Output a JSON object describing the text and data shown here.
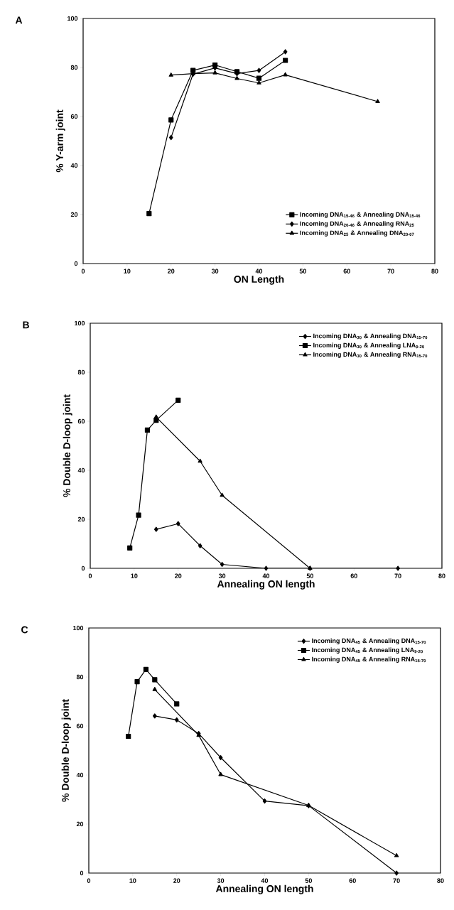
{
  "chart_data": [
    {
      "type": "line",
      "title": "A",
      "xlabel": "ON Length",
      "ylabel": "% Y-arm joint",
      "xlim": [
        0,
        80
      ],
      "ylim": [
        0,
        100
      ],
      "xticks": [
        0,
        10,
        20,
        30,
        40,
        50,
        60,
        70,
        80
      ],
      "yticks": [
        0,
        20,
        40,
        60,
        80,
        100
      ],
      "grid": false,
      "legend": "bottom right",
      "line_style": "solid",
      "series": [
        {
          "name": "Incoming DNA$_{15-46}$ & Annealing DNA$_{15-46}$",
          "color": "#000000",
          "marker": "square",
          "x": [
            15,
            20,
            25,
            30,
            35,
            40,
            46
          ],
          "values": [
            20.4,
            58.6,
            78.8,
            81,
            78.3,
            75.6,
            82.9
          ]
        },
        {
          "name": "Incoming DNA$_{20-46}$ & Annealing RNA$_{25}$",
          "color": "#000000",
          "marker": "diamond",
          "x": [
            20,
            25,
            30,
            35,
            40,
            46
          ],
          "values": [
            51.4,
            77.3,
            79.8,
            77.5,
            78.8,
            86.4
          ]
        },
        {
          "name": "Incoming DNA$_{25}$ & Annealing DNA$_{20-67}$",
          "color": "#000000",
          "marker": "triangle",
          "x": [
            20,
            25,
            30,
            35,
            40,
            46,
            67
          ],
          "values": [
            76.9,
            77.5,
            77.8,
            75.5,
            73.7,
            77,
            66.1
          ]
        }
      ]
    },
    {
      "type": "line",
      "title": "B",
      "xlabel": "Annealing ON length",
      "ylabel": "% Double D-loop joint",
      "xlim": [
        0,
        80
      ],
      "ylim": [
        0,
        100
      ],
      "xticks": [
        0,
        10,
        20,
        30,
        40,
        50,
        60,
        70,
        80
      ],
      "yticks": [
        0,
        20,
        40,
        60,
        80,
        100
      ],
      "grid": false,
      "legend": "top right",
      "line_style": "solid",
      "series": [
        {
          "name": "Incoming DNA$_{30}$ & Annealing DNA$_{15-70}$",
          "color": "#000000",
          "marker": "diamond",
          "x": [
            15,
            20,
            25,
            30,
            40,
            50,
            70
          ],
          "values": [
            15.9,
            18.2,
            9.2,
            1.6,
            0,
            0,
            0
          ]
        },
        {
          "name": "Incoming DNA$_{30}$ & Annealing LNA$_{9-20}$",
          "color": "#000000",
          "marker": "square",
          "x": [
            9,
            11,
            13,
            15,
            20
          ],
          "values": [
            8.3,
            21.7,
            56.4,
            60.4,
            68.6
          ]
        },
        {
          "name": "Incoming DNA$_{30}$ & Annealing RNA$_{15-70}$",
          "color": "#000000",
          "marker": "triangle",
          "x": [
            15,
            25,
            30,
            50
          ],
          "values": [
            61.7,
            43.7,
            29.8,
            0
          ]
        }
      ]
    },
    {
      "type": "line",
      "title": "C",
      "xlabel": "Annealing ON length",
      "ylabel": "% Double D-loop joint",
      "xlim": [
        0,
        80
      ],
      "ylim": [
        0,
        100
      ],
      "xticks": [
        0,
        10,
        20,
        30,
        40,
        50,
        60,
        70,
        80
      ],
      "yticks": [
        0,
        20,
        40,
        60,
        80,
        100
      ],
      "grid": false,
      "legend": "top right",
      "line_style": "solid",
      "series": [
        {
          "name": "Incoming DNA$_{45}$ & Annealing DNA$_{15-70}$",
          "color": "#000000",
          "marker": "diamond",
          "x": [
            15,
            20,
            25,
            30,
            40,
            50,
            70
          ],
          "values": [
            64.1,
            62.5,
            56.9,
            47.1,
            29.4,
            27.5,
            0
          ]
        },
        {
          "name": "Incoming DNA$_{45}$ & Annealing LNA$_{9-20}$",
          "color": "#000000",
          "marker": "square",
          "x": [
            9,
            11,
            13,
            15,
            20
          ],
          "values": [
            55.8,
            78.1,
            83.1,
            78.9,
            69
          ]
        },
        {
          "name": "Incoming DNA$_{45}$ & Annealing RNA$_{15-70}$",
          "color": "#000000",
          "marker": "triangle",
          "x": [
            15,
            25,
            30,
            50,
            70
          ],
          "values": [
            74.9,
            56.2,
            40.2,
            27.6,
            7.1
          ]
        }
      ]
    }
  ]
}
